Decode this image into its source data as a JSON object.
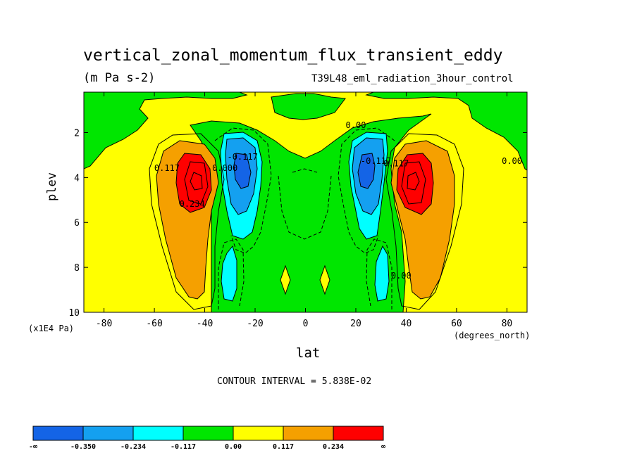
{
  "chart_data": {
    "type": "heatmap",
    "title": "vertical_zonal_momentum_flux_transient_eddy",
    "units": "(m Pa s-2)",
    "subtitle": "T39L48_eml_radiation_3hour_control",
    "xlabel": "lat",
    "xlabel_units": "(degrees_north)",
    "ylabel": "plev",
    "ylabel_scale": "(x1E4 Pa)",
    "xlim": [
      -88,
      88
    ],
    "ylim": [
      0.2,
      10
    ],
    "y_inverted": true,
    "x_ticks": [
      -80,
      -60,
      -40,
      -20,
      0,
      20,
      40,
      60,
      80
    ],
    "x_tick_labels": [
      "-80",
      "-60",
      "-40",
      "-20",
      "0",
      "20",
      "40",
      "60",
      "80"
    ],
    "y_ticks": [
      2,
      4,
      6,
      8,
      10
    ],
    "y_tick_labels": [
      "2",
      "4",
      "6",
      "8",
      "10"
    ],
    "contour_interval_text": "CONTOUR INTERVAL = 5.838E-02",
    "contour_labels": [
      {
        "text": "0.117",
        "lat": -55,
        "plev": 3.7
      },
      {
        "text": "0.234",
        "lat": -45,
        "plev": 5.3
      },
      {
        "text": "0.000",
        "lat": -32,
        "plev": 3.7
      },
      {
        "text": "-0.117",
        "lat": -25,
        "plev": 3.2
      },
      {
        "text": "0.00",
        "lat": 20,
        "plev": 1.8
      },
      {
        "text": "-0.117",
        "lat": 28,
        "plev": 3.4
      },
      {
        "text": "0.117",
        "lat": 36,
        "plev": 3.5
      },
      {
        "text": "0.00",
        "lat": 82,
        "plev": 3.4
      },
      {
        "text": "0.00",
        "lat": 38,
        "plev": 8.5
      }
    ],
    "features": [
      {
        "name": "SH positive maximum",
        "lat": -45,
        "plev": 4.0,
        "value": 0.29,
        "color_band": "red"
      },
      {
        "name": "NH positive maximum",
        "lat": 45,
        "plev": 4.0,
        "value": 0.29,
        "color_band": "red"
      },
      {
        "name": "SH negative minimum",
        "lat": -27,
        "plev": 3.8,
        "value": -0.36,
        "color_band": "blue"
      },
      {
        "name": "NH negative minimum",
        "lat": 25,
        "plev": 3.8,
        "value": -0.36,
        "color_band": "blue"
      },
      {
        "name": "SH lower negative lobe",
        "lat": -30,
        "plev": 8.8,
        "value": -0.2,
        "color_band": "cyan"
      },
      {
        "name": "NH lower negative lobe",
        "lat": 32,
        "plev": 8.8,
        "value": -0.2,
        "color_band": "cyan"
      }
    ],
    "colorbar": {
      "colors": [
        "#1464e6",
        "#14a0f0",
        "#00ffff",
        "#00e600",
        "#ffff00",
        "#f5a000",
        "#ff0000"
      ],
      "labels": [
        "-∞",
        "-0.350",
        "-0.234",
        "-0.117",
        "0.00",
        "0.117",
        "0.234",
        "∞"
      ]
    }
  }
}
